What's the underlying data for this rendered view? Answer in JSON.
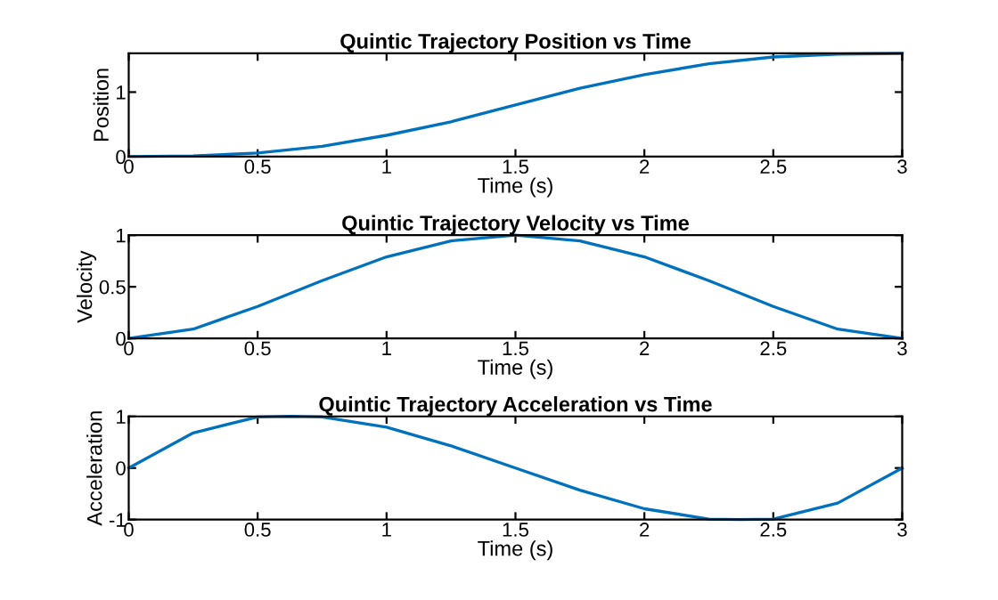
{
  "chart_data": [
    {
      "type": "line",
      "title": "Quintic Trajectory Position vs Time",
      "xlabel": "Time (s)",
      "ylabel": "Position",
      "x": [
        0,
        0.25,
        0.5,
        0.75,
        1,
        1.25,
        1.5,
        1.75,
        2,
        2.25,
        2.5,
        2.75,
        3
      ],
      "series": [
        {
          "color": "#0072bd",
          "values": [
            0,
            0.01,
            0.055,
            0.16,
            0.33,
            0.54,
            0.8,
            1.06,
            1.27,
            1.44,
            1.545,
            1.59,
            1.6
          ]
        }
      ],
      "xlim": [
        0,
        3
      ],
      "xticks": [
        0,
        0.5,
        1,
        1.5,
        2,
        2.5,
        3
      ],
      "ylim": [
        0,
        1.6
      ],
      "yticks": [
        0,
        1
      ],
      "grid": false,
      "legend": false
    },
    {
      "type": "line",
      "title": "Quintic Trajectory Velocity vs Time",
      "xlabel": "Time (s)",
      "ylabel": "Velocity",
      "x": [
        0,
        0.25,
        0.5,
        0.75,
        1,
        1.25,
        1.5,
        1.75,
        2,
        2.25,
        2.5,
        2.75,
        3
      ],
      "series": [
        {
          "color": "#0072bd",
          "values": [
            0,
            0.09,
            0.31,
            0.56,
            0.79,
            0.945,
            1,
            0.945,
            0.79,
            0.56,
            0.31,
            0.09,
            0
          ]
        }
      ],
      "xlim": [
        0,
        3
      ],
      "xticks": [
        0,
        0.5,
        1,
        1.5,
        2,
        2.5,
        3
      ],
      "ylim": [
        0,
        1
      ],
      "yticks": [
        0,
        0.5,
        1
      ],
      "grid": false,
      "legend": false
    },
    {
      "type": "line",
      "title": "Quintic Trajectory Acceleration vs Time",
      "xlabel": "Time (s)",
      "ylabel": "Acceleration",
      "x": [
        0,
        0.25,
        0.5,
        0.63,
        0.75,
        1,
        1.25,
        1.5,
        1.75,
        2,
        2.25,
        2.37,
        2.5,
        2.75,
        3
      ],
      "series": [
        {
          "color": "#0072bd",
          "values": [
            0,
            0.68,
            0.99,
            1,
            0.99,
            0.79,
            0.43,
            0,
            -0.43,
            -0.79,
            -0.99,
            -1,
            -0.99,
            -0.68,
            0
          ]
        }
      ],
      "xlim": [
        0,
        3
      ],
      "xticks": [
        0,
        0.5,
        1,
        1.5,
        2,
        2.5,
        3
      ],
      "ylim": [
        -1,
        1
      ],
      "yticks": [
        -1,
        0,
        1
      ],
      "grid": false,
      "legend": false
    }
  ]
}
